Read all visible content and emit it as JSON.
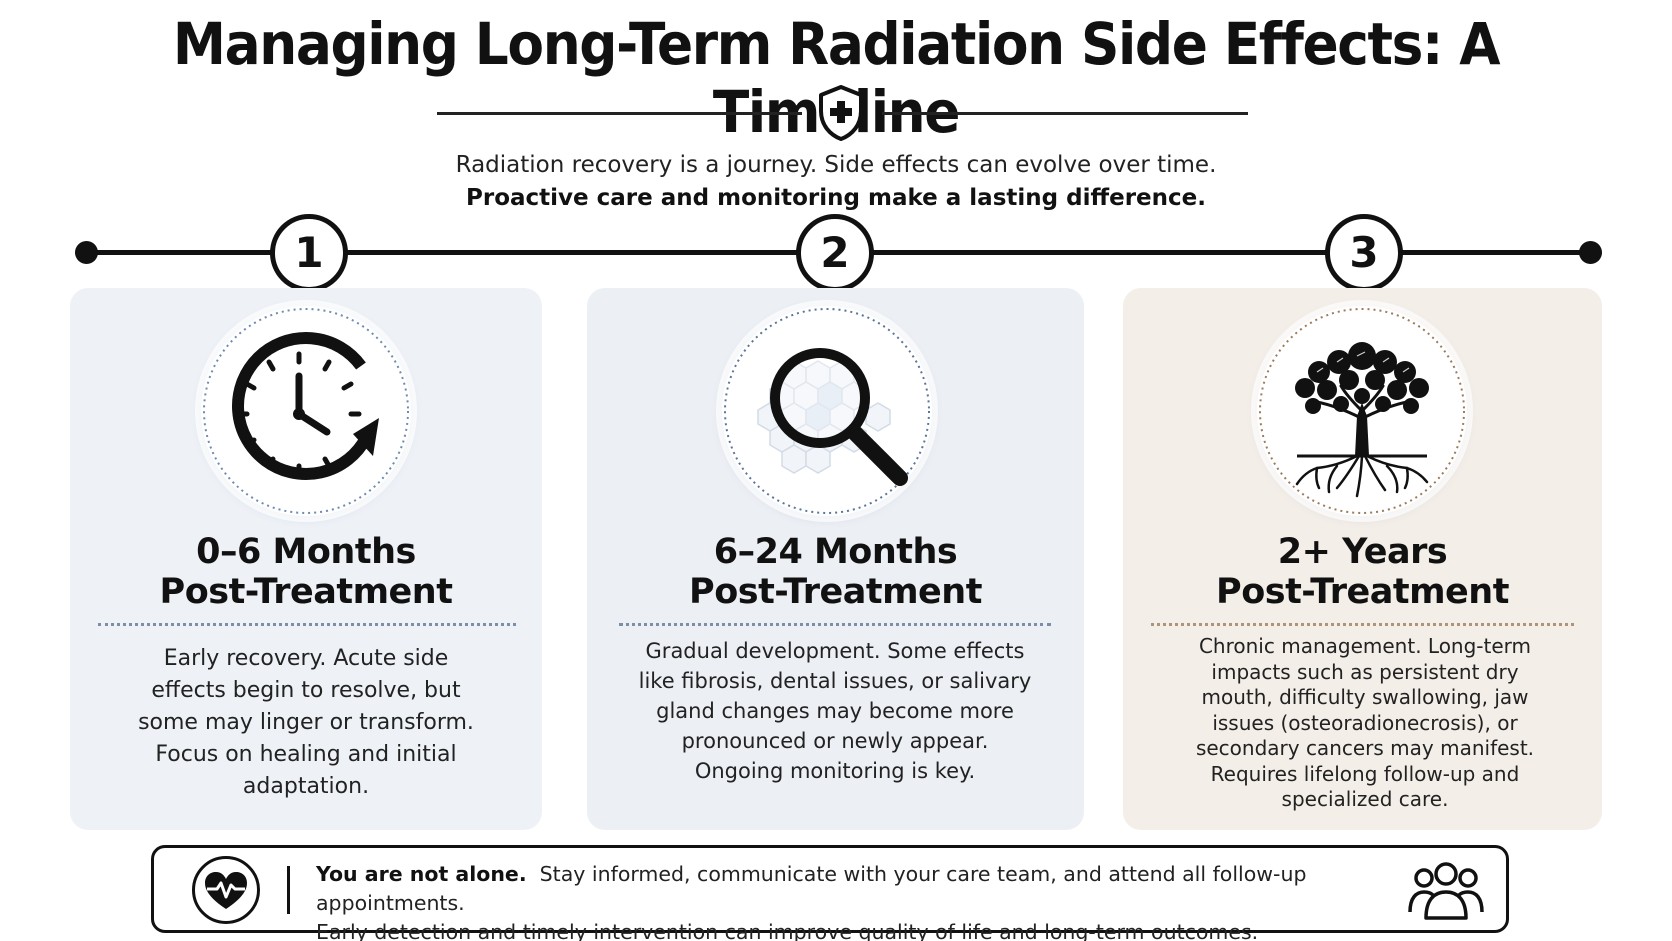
{
  "header": {
    "title": "Managing Long-Term Radiation Side Effects: A Timeline",
    "subtitle_line1": "Radiation recovery is a journey. Side effects can evolve over time.",
    "subtitle_line2": "Proactive care and monitoring make a lasting difference."
  },
  "timeline": {
    "steps": [
      "1",
      "2",
      "3"
    ]
  },
  "cards": [
    {
      "title_line1": "0–6 Months",
      "title_line2": "Post-Treatment",
      "description": "Early recovery. Acute side effects begin to resolve, but some may linger or transform. Focus on healing and initial adaptation.",
      "icon": "clock-with-arrow-icon"
    },
    {
      "title_line1": "6–24 Months",
      "title_line2": "Post-Treatment",
      "description": "Gradual development. Some effects like fibrosis, dental issues, or salivary gland changes may become more pronounced or newly appear. Ongoing monitoring is key.",
      "icon": "magnifying-glass-icon"
    },
    {
      "title_line1": "2+ Years",
      "title_line2": "Post-Treatment",
      "description": "Chronic management. Long-term impacts such as persistent dry mouth, difficulty swallowing, jaw issues (osteoradionecrosis), or secondary cancers may manifest. Requires lifelong follow-up and specialized care.",
      "icon": "tree-with-roots-icon"
    }
  ],
  "footer": {
    "lead": "You are not alone.",
    "text_line1": "Stay informed, communicate with your care team, and attend all follow-up appointments.",
    "text_line2": "Early detection and timely intervention can improve quality of life and long-term outcomes.",
    "left_icon": "heart-pulse-icon",
    "right_icon": "people-group-icon"
  },
  "colors": {
    "card1_bg": "#eef2f7",
    "card2_bg": "#eceff4",
    "card3_bg": "#f3eee8",
    "ink": "#111111"
  }
}
